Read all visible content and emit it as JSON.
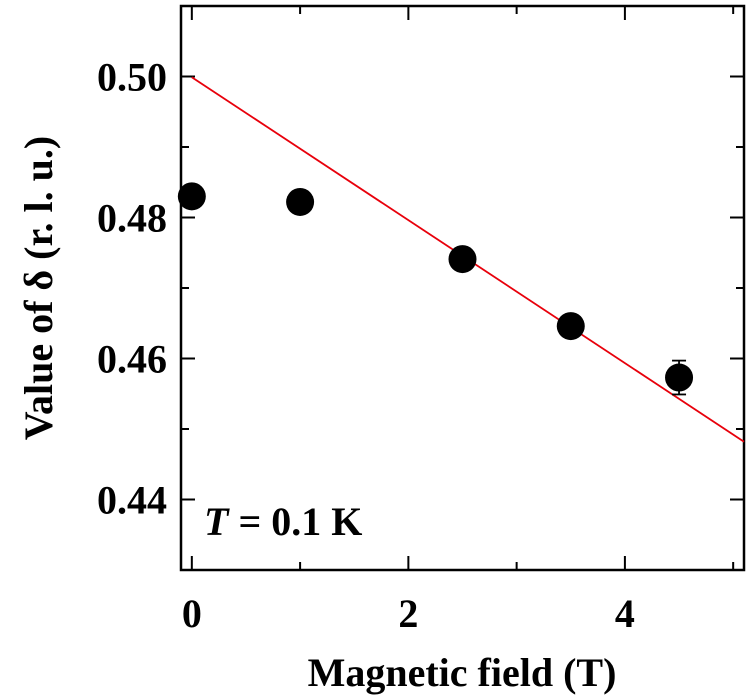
{
  "chart_data": {
    "type": "scatter",
    "xlabel": "Magnetic field (T)",
    "ylabel": "Value of δ (r. l. u.)",
    "annotation": {
      "symbol": "T",
      "text": " = 0.1 K"
    },
    "xlim": [
      -0.1,
      5.1
    ],
    "ylim": [
      0.43,
      0.51
    ],
    "x_ticks": [
      0,
      1,
      2,
      3,
      4,
      5
    ],
    "x_tick_labels": [
      "0",
      "",
      "2",
      "",
      "4",
      ""
    ],
    "y_ticks": [
      0.44,
      0.45,
      0.46,
      0.47,
      0.48,
      0.49,
      0.5
    ],
    "y_tick_labels": [
      "0.44",
      "",
      "0.46",
      "",
      "0.48",
      "",
      "0.50"
    ],
    "grid": false,
    "series": [
      {
        "type": "scatter",
        "color": "#000000",
        "points": [
          {
            "x": 0.0,
            "y": 0.483,
            "err": 0.0
          },
          {
            "x": 1.0,
            "y": 0.4822,
            "err": 0.0
          },
          {
            "x": 2.5,
            "y": 0.4741,
            "err": 0.0
          },
          {
            "x": 3.5,
            "y": 0.4646,
            "err": 0.0015
          },
          {
            "x": 4.5,
            "y": 0.4573,
            "err": 0.0024
          }
        ]
      },
      {
        "type": "line",
        "color": "#e8000b",
        "x": [
          0,
          5.1
        ],
        "y": [
          0.4999,
          0.4482
        ]
      }
    ]
  }
}
